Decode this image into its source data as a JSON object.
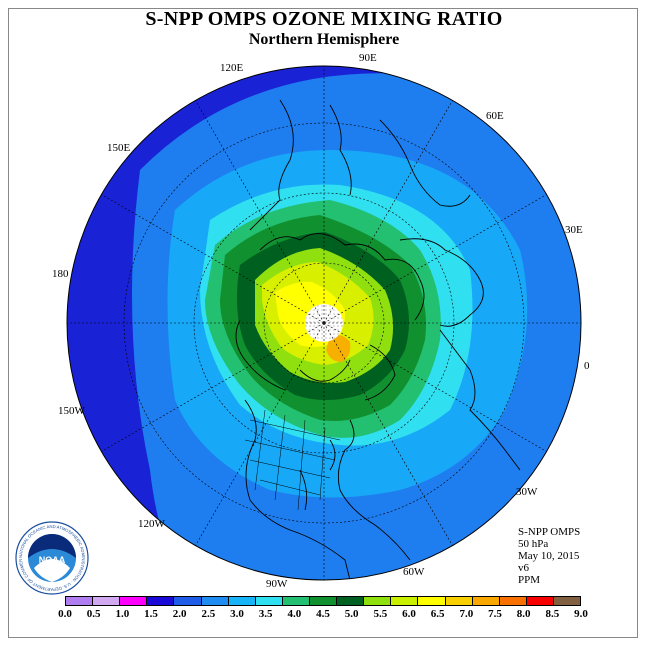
{
  "title": "S-NPP OMPS OZONE MIXING RATIO",
  "subtitle": "Northern Hemisphere",
  "longitude_labels": {
    "lon_90e": "90E",
    "lon_60e": "60E",
    "lon_30e": "30E",
    "lon_0": "0",
    "lon_30w": "30W",
    "lon_60w": "60W",
    "lon_90w": "90W",
    "lon_120w": "120W",
    "lon_150w": "150W",
    "lon_180": "180",
    "lon_150e": "150E",
    "lon_120e": "120E"
  },
  "info": {
    "instrument": "S-NPP OMPS",
    "level": "50 hPa",
    "date": "May 10, 2015",
    "version": "v6",
    "units": "PPM"
  },
  "logo": {
    "text": "NOAA",
    "ring_text": "NATIONAL OCEANIC AND ATMOSPHERIC ADMINISTRATION · U.S. DEPARTMENT OF COMMERCE"
  },
  "colorbar": {
    "ticks": [
      "0.0",
      "0.5",
      "1.0",
      "1.5",
      "2.0",
      "2.5",
      "3.0",
      "3.5",
      "4.0",
      "4.5",
      "5.0",
      "5.5",
      "6.0",
      "6.5",
      "7.0",
      "7.5",
      "8.0",
      "8.5",
      "9.0"
    ],
    "colors": [
      "#b07ef0",
      "#d2a8f0",
      "#ff00ff",
      "#1a0ad8",
      "#1f5ce8",
      "#1e8cf0",
      "#18b4f8",
      "#30e0f0",
      "#22c070",
      "#119030",
      "#006020",
      "#90e010",
      "#c8f000",
      "#ffff00",
      "#f8d000",
      "#f8a800",
      "#f87000",
      "#f80000",
      "#806040"
    ]
  },
  "map_colors": {
    "ocean_outer": "#1a22d6",
    "band_2_5": "#1e7ef0",
    "band_3_0": "#18a8f8",
    "band_3_5": "#30e0f0",
    "band_4_0": "#22c070",
    "band_4_5": "#119030",
    "band_5_0": "#006020",
    "band_5_5": "#90e010",
    "band_6_0": "#d8f000",
    "band_6_5": "#ffff00",
    "band_7_0": "#f8b000",
    "pole_nodata": "#ffffff"
  }
}
